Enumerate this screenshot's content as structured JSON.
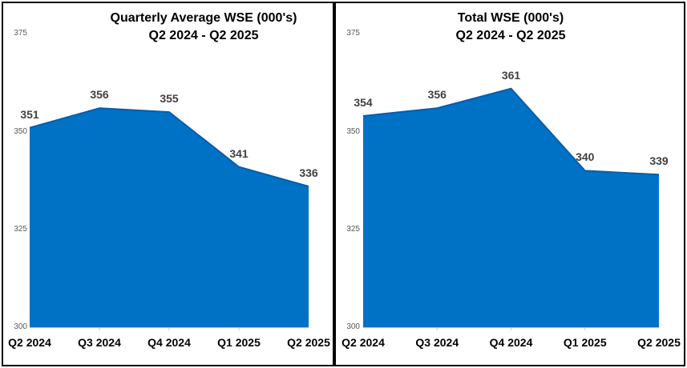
{
  "page": {
    "background_color": "#ffffff",
    "frame_border_color": "#000000"
  },
  "chart_data": [
    {
      "type": "area",
      "title": "Quarterly Average WSE (000's)",
      "subtitle": "Q2 2024 - Q2 2025",
      "categories": [
        "Q2 2024",
        "Q3 2024",
        "Q4 2024",
        "Q1 2025",
        "Q2 2025"
      ],
      "series": [
        {
          "name": "Quarterly Average WSE",
          "values": [
            351,
            356,
            355,
            341,
            336
          ]
        }
      ],
      "data_labels": [
        "351",
        "356",
        "355",
        "341",
        "336"
      ],
      "y_ticks": [
        375,
        350,
        325,
        300
      ],
      "ylim": [
        300,
        375
      ],
      "xlabel": "",
      "ylabel": "",
      "grid": false,
      "legend": "none",
      "fill_color": "#0072C6",
      "outline_color": "#0A5CA8",
      "data_label_color": "#404040",
      "axis_tick_label_color": "#595959",
      "axis_line_color": "#BFBFBF"
    },
    {
      "type": "area",
      "title": "Total WSE (000's)",
      "subtitle": "Q2 2024 - Q2 2025",
      "categories": [
        "Q2 2024",
        "Q3 2024",
        "Q4 2024",
        "Q1 2025",
        "Q2 2025"
      ],
      "series": [
        {
          "name": "Total WSE",
          "values": [
            354,
            356,
            361,
            340,
            339
          ]
        }
      ],
      "data_labels": [
        "354",
        "356",
        "361",
        "340",
        "339"
      ],
      "y_ticks": [
        375,
        350,
        325,
        300
      ],
      "ylim": [
        300,
        375
      ],
      "xlabel": "",
      "ylabel": "",
      "grid": false,
      "legend": "none",
      "fill_color": "#0072C6",
      "outline_color": "#0A5CA8",
      "data_label_color": "#404040",
      "axis_tick_label_color": "#595959",
      "axis_line_color": "#BFBFBF"
    }
  ]
}
